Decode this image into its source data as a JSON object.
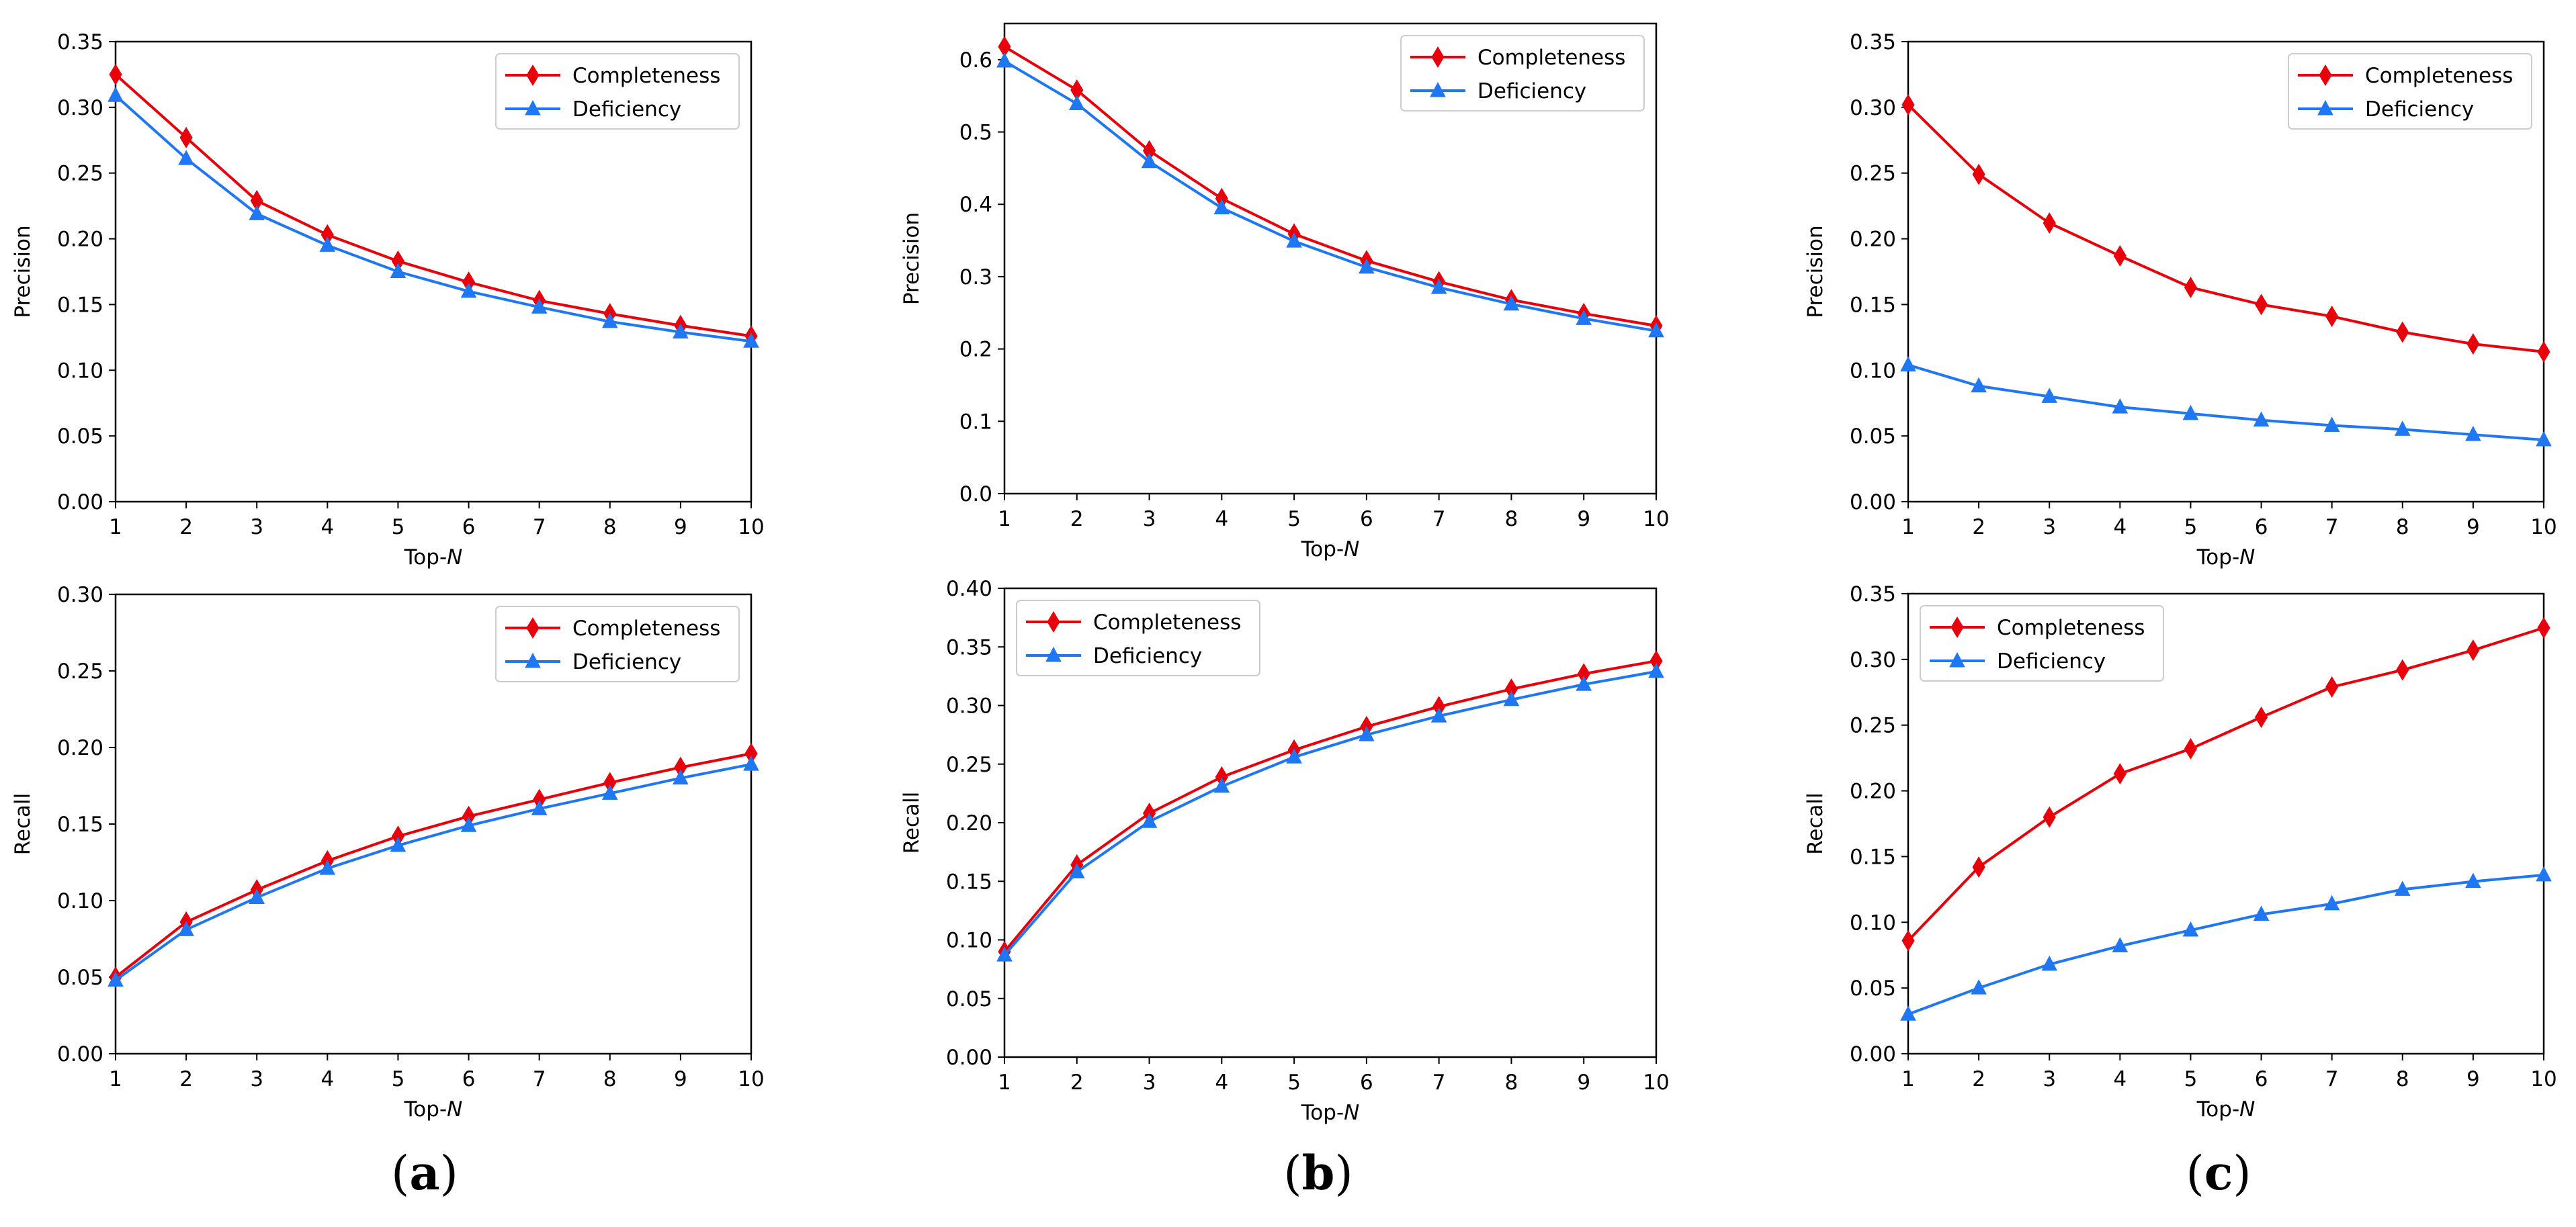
{
  "chart_data": [
    {
      "id": "a-precision",
      "panel": "a",
      "type": "line",
      "xlabel_prefix": "Top-",
      "xlabel_var": "N",
      "ylabel": "Precision",
      "x": [
        1,
        2,
        3,
        4,
        5,
        6,
        7,
        8,
        9,
        10
      ],
      "xlim": [
        1,
        10
      ],
      "ylim": [
        0,
        0.35
      ],
      "yticks": [
        "0.00",
        "0.05",
        "0.10",
        "0.15",
        "0.20",
        "0.25",
        "0.30",
        "0.35"
      ],
      "xticks": [
        "1",
        "2",
        "3",
        "4",
        "5",
        "6",
        "7",
        "8",
        "9",
        "10"
      ],
      "legend": "upper-right",
      "series": [
        {
          "name": "Completeness",
          "color": "#e8000b",
          "marker": "diamond",
          "values": [
            0.325,
            0.277,
            0.229,
            0.203,
            0.183,
            0.167,
            0.153,
            0.143,
            0.134,
            0.126
          ]
        },
        {
          "name": "Deficiency",
          "color": "#1f77f4",
          "marker": "triangle",
          "values": [
            0.309,
            0.261,
            0.219,
            0.195,
            0.175,
            0.16,
            0.148,
            0.137,
            0.129,
            0.122
          ]
        }
      ]
    },
    {
      "id": "b-precision",
      "panel": "b",
      "type": "line",
      "xlabel_prefix": "Top-",
      "xlabel_var": "N",
      "ylabel": "Precision",
      "x": [
        1,
        2,
        3,
        4,
        5,
        6,
        7,
        8,
        9,
        10
      ],
      "xlim": [
        1,
        10
      ],
      "ylim": [
        0,
        0.65
      ],
      "yticks": [
        "0.0",
        "0.1",
        "0.2",
        "0.3",
        "0.4",
        "0.5",
        "0.6"
      ],
      "ytick_values": [
        0,
        0.1,
        0.2,
        0.3,
        0.4,
        0.5,
        0.6
      ],
      "xticks": [
        "1",
        "2",
        "3",
        "4",
        "5",
        "6",
        "7",
        "8",
        "9",
        "10"
      ],
      "legend": "upper-right",
      "series": [
        {
          "name": "Completeness",
          "color": "#e8000b",
          "marker": "diamond",
          "values": [
            0.618,
            0.558,
            0.474,
            0.408,
            0.359,
            0.322,
            0.293,
            0.268,
            0.249,
            0.232
          ]
        },
        {
          "name": "Deficiency",
          "color": "#1f77f4",
          "marker": "triangle",
          "values": [
            0.598,
            0.539,
            0.459,
            0.395,
            0.349,
            0.313,
            0.285,
            0.262,
            0.242,
            0.225
          ]
        }
      ]
    },
    {
      "id": "c-precision",
      "panel": "c",
      "type": "line",
      "xlabel_prefix": "Top-",
      "xlabel_var": "N",
      "ylabel": "Precision",
      "x": [
        1,
        2,
        3,
        4,
        5,
        6,
        7,
        8,
        9,
        10
      ],
      "xlim": [
        1,
        10
      ],
      "ylim": [
        0,
        0.35
      ],
      "yticks": [
        "0.00",
        "0.05",
        "0.10",
        "0.15",
        "0.20",
        "0.25",
        "0.30",
        "0.35"
      ],
      "xticks": [
        "1",
        "2",
        "3",
        "4",
        "5",
        "6",
        "7",
        "8",
        "9",
        "10"
      ],
      "legend": "upper-right",
      "series": [
        {
          "name": "Completeness",
          "color": "#e8000b",
          "marker": "diamond",
          "values": [
            0.302,
            0.249,
            0.212,
            0.187,
            0.163,
            0.15,
            0.141,
            0.129,
            0.12,
            0.114
          ]
        },
        {
          "name": "Deficiency",
          "color": "#1f77f4",
          "marker": "triangle",
          "values": [
            0.104,
            0.088,
            0.08,
            0.072,
            0.067,
            0.062,
            0.058,
            0.055,
            0.051,
            0.047
          ]
        }
      ]
    },
    {
      "id": "a-recall",
      "panel": "a",
      "type": "line",
      "xlabel_prefix": "Top-",
      "xlabel_var": "N",
      "ylabel": "Recall",
      "x": [
        1,
        2,
        3,
        4,
        5,
        6,
        7,
        8,
        9,
        10
      ],
      "xlim": [
        1,
        10
      ],
      "ylim": [
        0,
        0.3
      ],
      "yticks": [
        "0.00",
        "0.05",
        "0.10",
        "0.15",
        "0.20",
        "0.25",
        "0.30"
      ],
      "xticks": [
        "1",
        "2",
        "3",
        "4",
        "5",
        "6",
        "7",
        "8",
        "9",
        "10"
      ],
      "legend": "upper-right",
      "series": [
        {
          "name": "Completeness",
          "color": "#e8000b",
          "marker": "diamond",
          "values": [
            0.05,
            0.086,
            0.107,
            0.126,
            0.142,
            0.155,
            0.166,
            0.177,
            0.187,
            0.196
          ]
        },
        {
          "name": "Deficiency",
          "color": "#1f77f4",
          "marker": "triangle",
          "values": [
            0.048,
            0.081,
            0.102,
            0.121,
            0.136,
            0.149,
            0.16,
            0.17,
            0.18,
            0.189
          ]
        }
      ]
    },
    {
      "id": "b-recall",
      "panel": "b",
      "type": "line",
      "xlabel_prefix": "Top-",
      "xlabel_var": "N",
      "ylabel": "Recall",
      "x": [
        1,
        2,
        3,
        4,
        5,
        6,
        7,
        8,
        9,
        10
      ],
      "xlim": [
        1,
        10
      ],
      "ylim": [
        0,
        0.4
      ],
      "yticks": [
        "0.00",
        "0.05",
        "0.10",
        "0.15",
        "0.20",
        "0.25",
        "0.30",
        "0.35",
        "0.40"
      ],
      "xticks": [
        "1",
        "2",
        "3",
        "4",
        "5",
        "6",
        "7",
        "8",
        "9",
        "10"
      ],
      "legend": "upper-left",
      "series": [
        {
          "name": "Completeness",
          "color": "#e8000b",
          "marker": "diamond",
          "values": [
            0.09,
            0.164,
            0.208,
            0.239,
            0.262,
            0.282,
            0.299,
            0.314,
            0.327,
            0.338
          ]
        },
        {
          "name": "Deficiency",
          "color": "#1f77f4",
          "marker": "triangle",
          "values": [
            0.087,
            0.158,
            0.201,
            0.231,
            0.256,
            0.275,
            0.291,
            0.305,
            0.318,
            0.329
          ]
        }
      ]
    },
    {
      "id": "c-recall",
      "panel": "c",
      "type": "line",
      "xlabel_prefix": "Top-",
      "xlabel_var": "N",
      "ylabel": "Recall",
      "x": [
        1,
        2,
        3,
        4,
        5,
        6,
        7,
        8,
        9,
        10
      ],
      "xlim": [
        1,
        10
      ],
      "ylim": [
        0,
        0.35
      ],
      "yticks": [
        "0.00",
        "0.05",
        "0.10",
        "0.15",
        "0.20",
        "0.25",
        "0.30",
        "0.35"
      ],
      "xticks": [
        "1",
        "2",
        "3",
        "4",
        "5",
        "6",
        "7",
        "8",
        "9",
        "10"
      ],
      "legend": "upper-left",
      "series": [
        {
          "name": "Completeness",
          "color": "#e8000b",
          "marker": "diamond",
          "values": [
            0.086,
            0.142,
            0.18,
            0.213,
            0.232,
            0.256,
            0.279,
            0.292,
            0.307,
            0.324
          ]
        },
        {
          "name": "Deficiency",
          "color": "#1f77f4",
          "marker": "triangle",
          "values": [
            0.03,
            0.05,
            0.068,
            0.082,
            0.094,
            0.106,
            0.114,
            0.125,
            0.131,
            0.136
          ]
        }
      ]
    }
  ],
  "panel_labels": {
    "a": "a",
    "b": "b",
    "c": "c"
  }
}
